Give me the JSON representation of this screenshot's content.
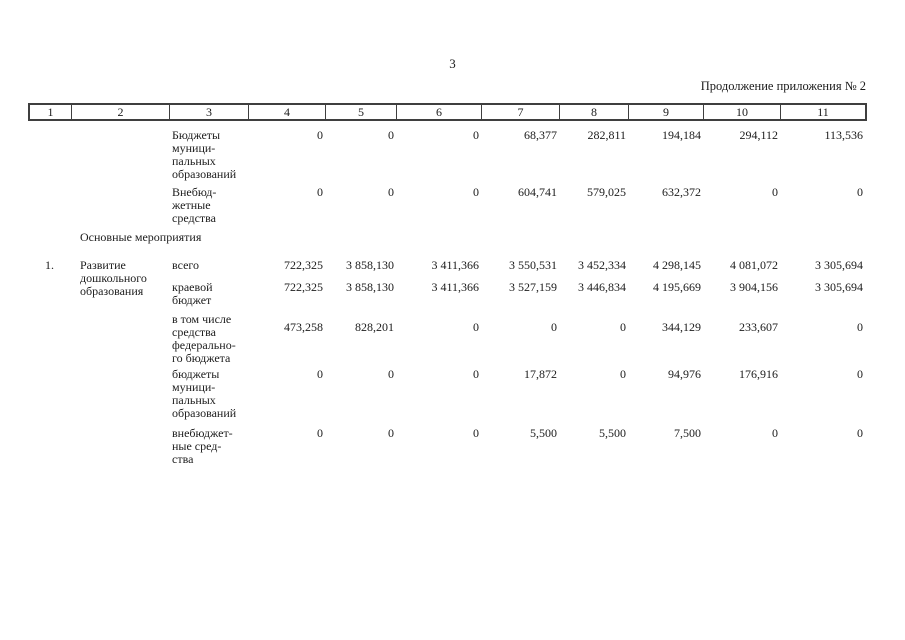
{
  "page": {
    "number": "3",
    "continuation_note": "Продолжение приложения № 2"
  },
  "table": {
    "column_numbers": [
      "1",
      "2",
      "3",
      "4",
      "5",
      "6",
      "7",
      "8",
      "9",
      "10",
      "11"
    ],
    "section_heading": "Основные мероприятия",
    "group": {
      "num": "1.",
      "title": "Развитие\nдошкольного\nобразования"
    },
    "rows": [
      {
        "funding_source": "Бюджеты\nмуници-\nпальных\nобразований",
        "values": [
          "0",
          "0",
          "0",
          "68,377",
          "282,811",
          "194,184",
          "294,112",
          "113,536"
        ]
      },
      {
        "funding_source": "Внебюд-\nжетные\nсредства",
        "values": [
          "0",
          "0",
          "0",
          "604,741",
          "579,025",
          "632,372",
          "0",
          "0"
        ]
      },
      {
        "funding_source": "всего",
        "values": [
          "722,325",
          "3 858,130",
          "3 411,366",
          "3 550,531",
          "3 452,334",
          "4 298,145",
          "4 081,072",
          "3 305,694"
        ]
      },
      {
        "funding_source": "краевой\nбюджет",
        "values": [
          "722,325",
          "3 858,130",
          "3 411,366",
          "3 527,159",
          "3 446,834",
          "4 195,669",
          "3 904,156",
          "3 305,694"
        ]
      },
      {
        "funding_source": "в том числе\nсредства\nфедерально-\nго бюджета",
        "values": [
          "473,258",
          "828,201",
          "0",
          "0",
          "0",
          "344,129",
          "233,607",
          "0"
        ]
      },
      {
        "funding_source": "бюджеты\nмуници-\nпальных\nобразований",
        "values": [
          "0",
          "0",
          "0",
          "17,872",
          "0",
          "94,976",
          "176,916",
          "0"
        ]
      },
      {
        "funding_source": "внебюджет-\nные сред-\nства",
        "values": [
          "0",
          "0",
          "0",
          "5,500",
          "5,500",
          "7,500",
          "0",
          "0"
        ]
      }
    ]
  }
}
